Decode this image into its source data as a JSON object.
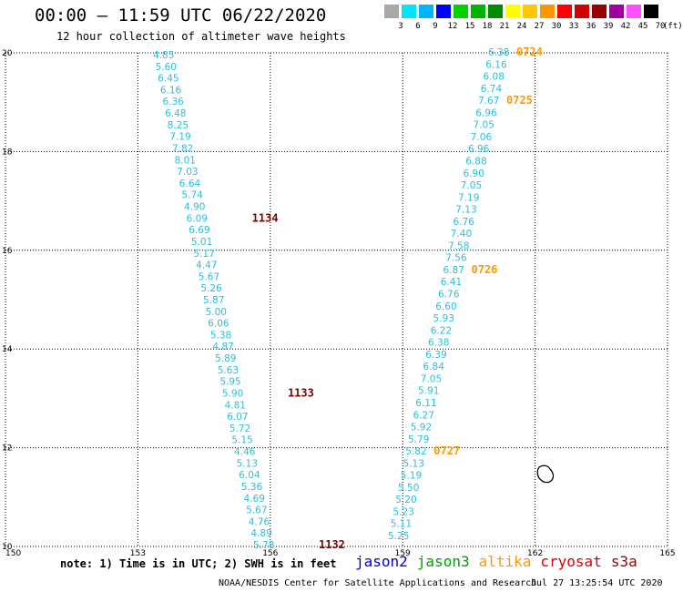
{
  "header": {
    "title": "00:00 – 11:59 UTC 06/22/2020",
    "subtitle": "12 hour collection of altimeter wave heights"
  },
  "legend": {
    "unit": "(ft)",
    "items": [
      {
        "label": "3",
        "color": "#a8a8a8"
      },
      {
        "label": "6",
        "color": "#00e5ff"
      },
      {
        "label": "9",
        "color": "#00b4ff"
      },
      {
        "label": "12",
        "color": "#0000ff"
      },
      {
        "label": "15",
        "color": "#00d200"
      },
      {
        "label": "18",
        "color": "#00b400"
      },
      {
        "label": "21",
        "color": "#008c00"
      },
      {
        "label": "24",
        "color": "#ffff00"
      },
      {
        "label": "27",
        "color": "#ffc800"
      },
      {
        "label": "30",
        "color": "#ff9600"
      },
      {
        "label": "33",
        "color": "#ff0000"
      },
      {
        "label": "36",
        "color": "#d20000"
      },
      {
        "label": "39",
        "color": "#960000"
      },
      {
        "label": "42",
        "color": "#a000a0"
      },
      {
        "label": "45",
        "color": "#ff50ff"
      },
      {
        "label": "70",
        "color": "#000000"
      }
    ]
  },
  "map": {
    "lon_range": [
      150,
      165
    ],
    "lat_range": [
      10,
      20
    ],
    "x_ticks": [
      "150",
      "153",
      "156",
      "159",
      "162",
      "165"
    ],
    "y_ticks": [
      "10",
      "12",
      "14",
      "16",
      "18",
      "20"
    ],
    "track_color": "#29bfe0",
    "time_color_1": "#800000",
    "time_color_2": "#ff9900",
    "track_1": {
      "values": [
        "4.85",
        "5.60",
        "6.45",
        "6.16",
        "6.36",
        "6.48",
        "8.25",
        "7.19",
        "7.82",
        "8.01",
        "7.03",
        "6.64",
        "5.74",
        "4.90",
        "6.09",
        "6.69",
        "5.01",
        "5.17",
        "4.47",
        "5.67",
        "5.26",
        "5.87",
        "5.00",
        "6.06",
        "5.38",
        "4.87",
        "5.89",
        "5.63",
        "5.95",
        "5.90",
        "4.81",
        "6.07",
        "5.72",
        "5.15",
        "4.46",
        "5.13",
        "6.04",
        "5.36",
        "4.69",
        "5.67",
        "4.76",
        "4.89",
        "5.78"
      ],
      "times": [
        {
          "label": "1134",
          "row": 14
        },
        {
          "label": "1133",
          "row": 29
        },
        {
          "label": "1132",
          "row": 42
        }
      ]
    },
    "track_2": {
      "values": [
        "6.38",
        "6.16",
        "6.08",
        "6.74",
        "7.67",
        "6.96",
        "7.05",
        "7.06",
        "6.96",
        "6.88",
        "6.90",
        "7.05",
        "7.19",
        "7.13",
        "6.76",
        "7.40",
        "7.58",
        "7.56",
        "6.87",
        "6.41",
        "6.76",
        "6.60",
        "5.93",
        "6.22",
        "6.38",
        "6.39",
        "6.84",
        "7.05",
        "5.91",
        "6.11",
        "6.27",
        "5.92",
        "5.79",
        "5.82",
        "5.13",
        "5.19",
        "5.50",
        "5.20",
        "5.23",
        "5.11",
        "5.25"
      ],
      "times": [
        {
          "label": "0724",
          "row": 0
        },
        {
          "label": "0725",
          "row": 4
        },
        {
          "label": "0726",
          "row": 18
        },
        {
          "label": "0727",
          "row": 33
        }
      ]
    }
  },
  "note": "note: 1) Time is in UTC; 2) SWH is in feet",
  "satellites": [
    {
      "name": "jason2",
      "color": "#0000cc"
    },
    {
      "name": "jason3",
      "color": "#00a000"
    },
    {
      "name": "altika",
      "color": "#ff9900"
    },
    {
      "name": "cryosat",
      "color": "#dd0000"
    },
    {
      "name": "s3a",
      "color": "#990000"
    }
  ],
  "footer": {
    "center": "NOAA/NESDIS Center for Satellite Applications and Research",
    "timestamp": "Jul 27 13:25:54 UTC 2020"
  }
}
